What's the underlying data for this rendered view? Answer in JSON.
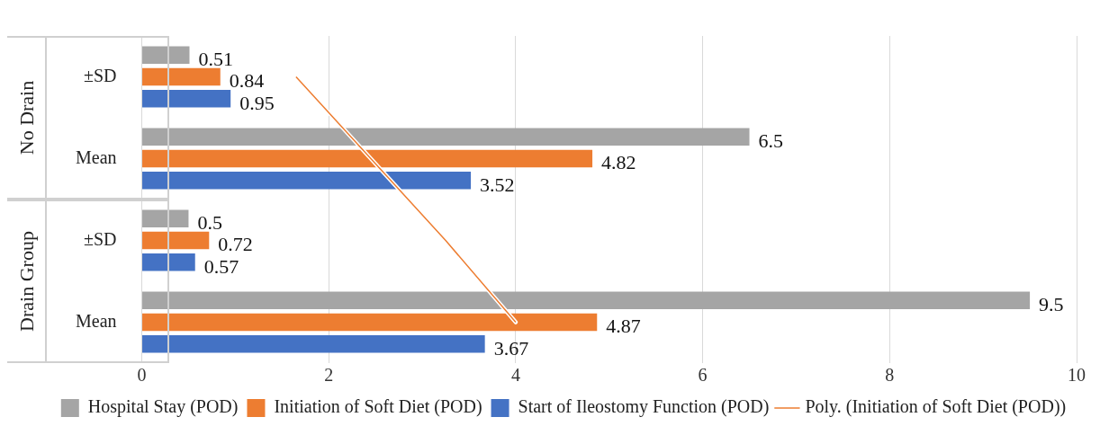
{
  "chart_data": {
    "type": "bar",
    "orientation": "horizontal",
    "categories": [
      "±SD",
      "Mean",
      "±SD",
      "Mean"
    ],
    "series": [
      {
        "name": "Hospital Stay (POD)",
        "color": "#a5a5a5",
        "values": [
          0.51,
          6.5,
          0.5,
          9.5
        ],
        "value_labels": [
          "0.51",
          "6.5",
          "0.5",
          "9.5"
        ]
      },
      {
        "name": "Initiation of Soft Diet (POD)",
        "color": "#ed7d31",
        "values": [
          0.84,
          4.82,
          0.72,
          4.87
        ],
        "value_labels": [
          "0.84",
          "4.82",
          "0.72",
          "4.87"
        ]
      },
      {
        "name": "Start of Ileostomy Function (POD)",
        "color": "#4472c4",
        "values": [
          0.95,
          3.52,
          0.57,
          3.67
        ],
        "value_labels": [
          "0.95",
          "3.52",
          "0.57",
          "3.67"
        ]
      },
      {
        "name": "Poly. (Initiation of Soft Diet (POD))",
        "type": "line",
        "color": "#ed7d31",
        "values": [
          1.65,
          2.45,
          3.25,
          4.0
        ]
      }
    ],
    "annotations": [
      "No Drain",
      "Drain Group"
    ],
    "xlim": [
      0,
      10
    ],
    "xticks": [
      0,
      2,
      4,
      6,
      8,
      10
    ],
    "grid": "x",
    "legend": "bottom",
    "marker": "none"
  }
}
